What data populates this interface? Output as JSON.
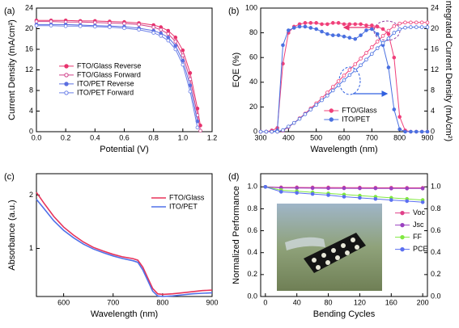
{
  "chart_data": [
    {
      "type": "line",
      "label": "(a)",
      "xlabel": "Potential (V)",
      "ylabel": "Current Density (mA/cm²)",
      "x": [
        0,
        0.1,
        0.2,
        0.3,
        0.4,
        0.5,
        0.6,
        0.7,
        0.8,
        0.85,
        0.9,
        0.95,
        1.0,
        1.05,
        1.1,
        1.12,
        1.14
      ],
      "xlim": [
        0,
        1.2
      ],
      "xticks": [
        {
          "value": 0,
          "label": "0.0"
        },
        {
          "value": 0.2,
          "label": "0.2"
        },
        {
          "value": 0.4,
          "label": "0.4"
        },
        {
          "value": 0.6,
          "label": "0.6"
        },
        {
          "value": 0.8,
          "label": "0.8"
        },
        {
          "value": 1.0,
          "label": "1.0"
        },
        {
          "value": 1.2,
          "label": "1.2"
        }
      ],
      "ylim": [
        0,
        24
      ],
      "yticks": [
        0,
        4,
        8,
        12,
        16,
        20,
        24
      ],
      "legend": "center left",
      "series": [
        {
          "name": "FTO/Glass Reverse",
          "color": "#e8336d",
          "marker": "filled",
          "values": [
            21.6,
            21.6,
            21.6,
            21.5,
            21.5,
            21.4,
            21.3,
            21.1,
            20.7,
            20.3,
            19.6,
            18.3,
            15.8,
            11.4,
            4.5,
            1.2,
            null
          ]
        },
        {
          "name": "FTO/Glass Forward",
          "color": "#d0408a",
          "marker": "open",
          "values": [
            21.4,
            21.4,
            21.3,
            21.3,
            21.2,
            21.1,
            21.0,
            20.8,
            20.3,
            19.8,
            19.0,
            17.5,
            14.8,
            10.2,
            3.2,
            0.2,
            null
          ]
        },
        {
          "name": "ITO/PET Reverse",
          "color": "#5b6fe0",
          "marker": "filled",
          "values": [
            20.8,
            20.8,
            20.8,
            20.7,
            20.6,
            20.5,
            20.4,
            20.1,
            19.6,
            19.1,
            18.3,
            16.7,
            13.8,
            9.0,
            2.0,
            null,
            null
          ]
        },
        {
          "name": "ITO/PET Forward",
          "color": "#6a7fe8",
          "marker": "open",
          "values": [
            20.6,
            20.6,
            20.5,
            20.5,
            20.4,
            20.3,
            20.1,
            19.8,
            19.2,
            18.6,
            17.7,
            16.0,
            13.0,
            7.8,
            0.8,
            null,
            null
          ]
        }
      ]
    },
    {
      "type": "line",
      "label": "(b)",
      "xlabel": "Wavelength (nm)",
      "ylabel": "EQE (%)",
      "y2label": "Integrated Current Density (mA/cm²)",
      "x": [
        300,
        320,
        340,
        360,
        380,
        400,
        420,
        440,
        460,
        480,
        500,
        520,
        540,
        560,
        580,
        600,
        620,
        640,
        660,
        680,
        700,
        720,
        740,
        760,
        780,
        800,
        820,
        840,
        860,
        880,
        900
      ],
      "xlim": [
        300,
        900
      ],
      "xticks": [
        300,
        400,
        500,
        600,
        700,
        800,
        900
      ],
      "ylim": [
        0,
        100
      ],
      "yticks": [
        0,
        20,
        40,
        60,
        80,
        100
      ],
      "y2lim": [
        0,
        24
      ],
      "y2ticks": [
        0,
        4,
        8,
        12,
        16,
        20,
        24
      ],
      "legend": "lower center",
      "series": [
        {
          "name": "FTO/Glass",
          "color": "#f0407a",
          "marker": "filled",
          "values": [
            0,
            0,
            1,
            3,
            55,
            80,
            85,
            87,
            88,
            88,
            88,
            87,
            87,
            88,
            88,
            87,
            87,
            87,
            87,
            86,
            86,
            85,
            83,
            79,
            60,
            12,
            1,
            0,
            0,
            0,
            0
          ]
        },
        {
          "name": "ITO/PET",
          "color": "#4a70e0",
          "marker": "filled",
          "values": [
            0,
            0,
            0,
            1,
            70,
            82,
            84,
            85,
            85,
            84,
            83,
            81,
            79,
            78,
            78,
            77,
            76,
            75,
            78,
            82,
            83,
            79,
            70,
            52,
            18,
            2,
            0,
            0,
            0,
            0,
            0
          ]
        },
        {
          "color": "#f0407a",
          "marker": "open",
          "axis": "y2",
          "values": [
            0,
            0,
            0,
            0,
            0.2,
            0.9,
            1.7,
            2.6,
            3.5,
            4.5,
            5.5,
            6.5,
            7.6,
            8.7,
            9.8,
            10.9,
            12.0,
            13.1,
            14.2,
            15.3,
            16.4,
            17.5,
            18.6,
            19.6,
            20.5,
            21.0,
            21.2,
            21.2,
            21.2,
            21.2,
            21.2
          ]
        },
        {
          "color": "#4a70e0",
          "marker": "open",
          "axis": "y2",
          "values": [
            0,
            0,
            0,
            0,
            0.3,
            1.0,
            1.7,
            2.5,
            3.4,
            4.3,
            5.2,
            6.1,
            7.0,
            8.0,
            9.0,
            10.0,
            11.0,
            11.9,
            12.9,
            14.0,
            15.1,
            16.2,
            17.2,
            18.1,
            19.2,
            19.9,
            20.2,
            20.3,
            20.3,
            20.3,
            20.3
          ]
        }
      ]
    },
    {
      "type": "line",
      "label": "(c)",
      "xlabel": "Wavelength (nm)",
      "ylabel": "Absorbance (a.u.)",
      "x": [
        545,
        560,
        580,
        600,
        620,
        640,
        660,
        680,
        700,
        720,
        740,
        750,
        760,
        770,
        780,
        790,
        800,
        820,
        840,
        860,
        880,
        900
      ],
      "xlim": [
        545,
        900
      ],
      "xticks": [
        600,
        700,
        800,
        900
      ],
      "ylim": [
        0.1,
        2.4
      ],
      "yticks": [
        1,
        2
      ],
      "legend": "upper right",
      "series": [
        {
          "name": "FTO/Glass",
          "color": "#e8335a",
          "values": [
            2.05,
            1.85,
            1.6,
            1.4,
            1.25,
            1.12,
            1.02,
            0.95,
            0.89,
            0.84,
            0.81,
            0.78,
            0.65,
            0.45,
            0.25,
            0.15,
            0.14,
            0.15,
            0.17,
            0.19,
            0.21,
            0.22
          ]
        },
        {
          "name": "ITO/PET",
          "color": "#5070e8",
          "values": [
            1.92,
            1.75,
            1.52,
            1.34,
            1.2,
            1.08,
            0.99,
            0.92,
            0.86,
            0.81,
            0.77,
            0.74,
            0.6,
            0.4,
            0.2,
            0.11,
            0.1,
            0.11,
            0.13,
            0.15,
            0.16,
            0.17
          ]
        }
      ]
    },
    {
      "type": "line",
      "label": "(d)",
      "xlabel": "Bending Cycles",
      "ylabel": "Normalized Performance",
      "x": [
        0,
        20,
        40,
        60,
        80,
        100,
        120,
        140,
        160,
        180,
        200
      ],
      "xlim": [
        -6,
        206
      ],
      "xticks": [
        0,
        40,
        80,
        120,
        160,
        200
      ],
      "ylim": [
        0,
        1.12
      ],
      "yticks": [
        {
          "value": 0,
          "label": "0.0"
        },
        {
          "value": 0.2,
          "label": "0.2"
        },
        {
          "value": 0.4,
          "label": "0.4"
        },
        {
          "value": 0.6,
          "label": "0.6"
        },
        {
          "value": 0.8,
          "label": "0.8"
        },
        {
          "value": 1.0,
          "label": "1.0"
        }
      ],
      "y2lim": [
        0,
        1.12
      ],
      "y2ticks": [
        {
          "value": 0,
          "label": "0.0"
        },
        {
          "value": 0.2,
          "label": "0.2"
        },
        {
          "value": 0.4,
          "label": "0.4"
        },
        {
          "value": 0.6,
          "label": "0.6"
        },
        {
          "value": 0.8,
          "label": "0.8"
        },
        {
          "value": 1.0,
          "label": "1.0"
        }
      ],
      "legend": "center right",
      "series": [
        {
          "name": "Voc",
          "color": "#e0408a",
          "marker": "filled",
          "values": [
            1.0,
            0.995,
            0.995,
            0.994,
            0.994,
            0.993,
            0.993,
            0.992,
            0.992,
            0.991,
            0.991
          ]
        },
        {
          "name": "Jsc",
          "color": "#9a40c0",
          "marker": "filled",
          "values": [
            1.0,
            0.99,
            0.989,
            0.988,
            0.987,
            0.987,
            0.986,
            0.986,
            0.985,
            0.985,
            0.985
          ]
        },
        {
          "name": "FF",
          "color": "#80e840",
          "marker": "filled",
          "values": [
            1.0,
            0.97,
            0.96,
            0.95,
            0.94,
            0.93,
            0.92,
            0.91,
            0.9,
            0.89,
            0.88
          ]
        },
        {
          "name": "PCE",
          "color": "#5a6ff0",
          "marker": "filled",
          "values": [
            1.0,
            0.955,
            0.945,
            0.935,
            0.925,
            0.91,
            0.9,
            0.89,
            0.88,
            0.87,
            0.86
          ]
        }
      ]
    }
  ]
}
